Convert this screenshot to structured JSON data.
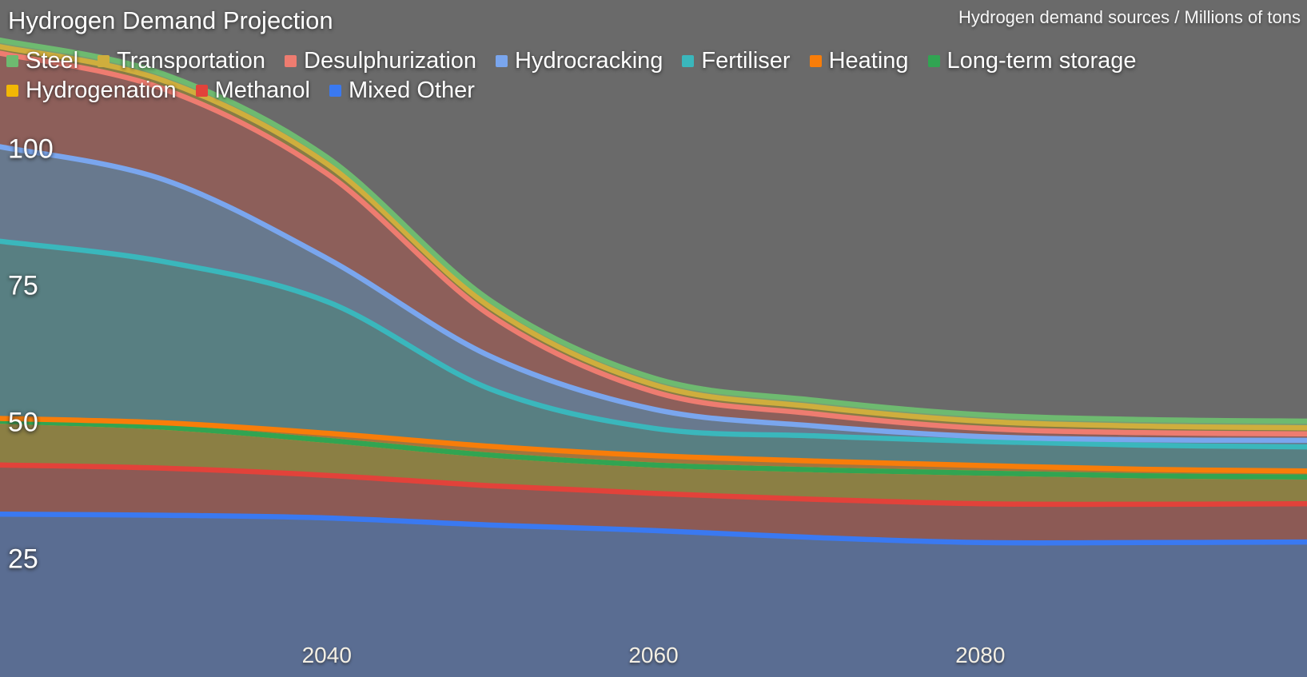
{
  "header": {
    "title": "Hydrogen Demand Projection",
    "subtitle": "Hydrogen demand sources / Millions of tons"
  },
  "colors": {
    "background": "#6a6a6a",
    "title_text": "#ffffff",
    "axis_text": "#f3efe4"
  },
  "chart_data": {
    "type": "area",
    "stacked": true,
    "title": "Hydrogen Demand Projection",
    "units_label": "Hydrogen demand sources / Millions of tons",
    "x": [
      2020,
      2030,
      2040,
      2050,
      2060,
      2070,
      2080,
      2090,
      2100
    ],
    "x_ticks": [
      2040,
      2060,
      2080
    ],
    "y_ticks": [
      25,
      50,
      75,
      100
    ],
    "xlim": [
      2020,
      2100
    ],
    "ylim": [
      0,
      125
    ],
    "grid": false,
    "legend_position": "top",
    "stacking_note": "first series is the topmost band; last series sits on the baseline",
    "series": [
      {
        "name": "Steel",
        "color": "#6eba70",
        "fill": "#799f72",
        "values": [
          1.2,
          1.2,
          1.2,
          1.2,
          1.2,
          1.2,
          1.2,
          1.2,
          1.2
        ]
      },
      {
        "name": "Transportation",
        "color": "#cfae3d",
        "fill": "#877c45",
        "values": [
          1.2,
          1.5,
          1.8,
          1.5,
          1.3,
          1.3,
          1.3,
          1.2,
          1.1
        ]
      },
      {
        "name": "Desulphurization",
        "color": "#ee7c70",
        "fill": "#8d5f5a",
        "values": [
          17.1,
          16.6,
          15.5,
          7.5,
          3.2,
          2.2,
          1.5,
          1.3,
          1.2
        ]
      },
      {
        "name": "Hydrocracking",
        "color": "#7aa6ee",
        "fill": "#68798e",
        "values": [
          17.3,
          15.0,
          7.9,
          6.0,
          3.5,
          1.8,
          0.9,
          1.0,
          1.2
        ]
      },
      {
        "name": "Fertiliser",
        "color": "#3ab7bc",
        "fill": "#587f82",
        "values": [
          32.4,
          29.5,
          24.1,
          10.5,
          5.0,
          4.6,
          4.4,
          4.4,
          4.4
        ]
      },
      {
        "name": "Heating",
        "color": "#f87d09",
        "fill": "#a3753e",
        "values": [
          0.5,
          0.8,
          1.3,
          1.6,
          1.7,
          1.6,
          1.4,
          1.2,
          1.1
        ]
      },
      {
        "name": "Long-term storage",
        "color": "#31a452",
        "fill": "#6f8f5f",
        "values": [
          0,
          0,
          0,
          0,
          0,
          0,
          0,
          0,
          0
        ]
      },
      {
        "name": "Hydrogenation",
        "color": "#f2b705",
        "fill": "#8b7f44",
        "values": [
          8.0,
          7.5,
          6.4,
          5.6,
          5.2,
          5.4,
          5.6,
          5.2,
          4.9
        ]
      },
      {
        "name": "Methanol",
        "color": "#e2423a",
        "fill": "#8c5a55",
        "values": [
          9.0,
          8.6,
          7.8,
          7.2,
          6.8,
          7.0,
          7.1,
          7.0,
          7.0
        ]
      },
      {
        "name": "Mixed Other",
        "color": "#3a79f1",
        "fill": "#5a6d92",
        "values": [
          33.3,
          33.1,
          32.6,
          31.3,
          30.3,
          29.0,
          28.1,
          28.1,
          28.2
        ]
      }
    ]
  }
}
